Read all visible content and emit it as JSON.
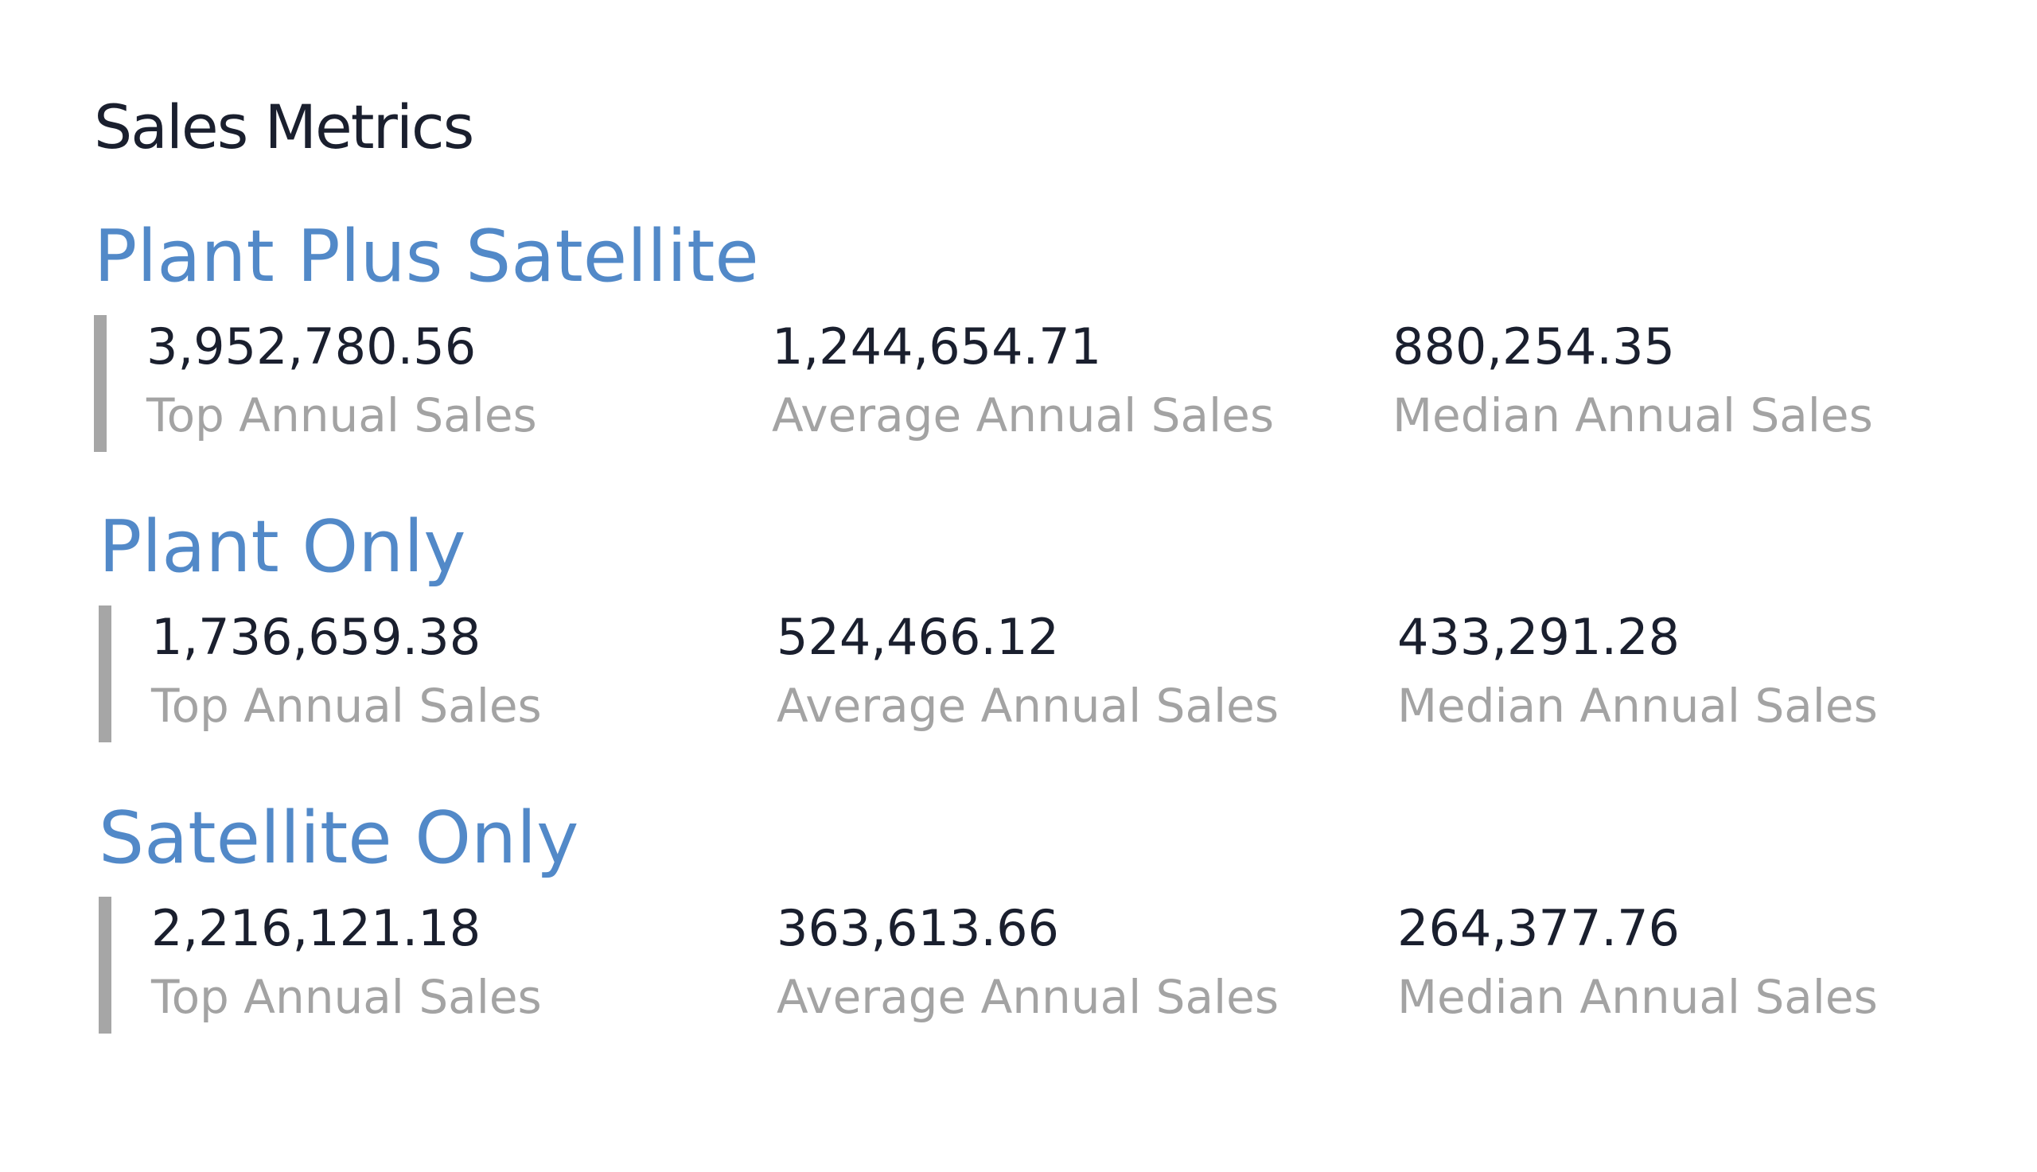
{
  "page": {
    "title": "Sales Metrics"
  },
  "sections": [
    {
      "title": "Plant Plus Satellite",
      "metrics": [
        {
          "value": "3,952,780.56",
          "label": "Top Annual Sales"
        },
        {
          "value": "1,244,654.71",
          "label": "Average Annual Sales"
        },
        {
          "value": "880,254.35",
          "label": "Median Annual Sales"
        }
      ]
    },
    {
      "title": "Plant Only",
      "metrics": [
        {
          "value": "1,736,659.38",
          "label": "Top Annual Sales"
        },
        {
          "value": "524,466.12",
          "label": "Average Annual Sales"
        },
        {
          "value": "433,291.28",
          "label": "Median Annual Sales"
        }
      ]
    },
    {
      "title": "Satellite Only",
      "metrics": [
        {
          "value": "2,216,121.18",
          "label": "Top Annual Sales"
        },
        {
          "value": "363,613.66",
          "label": "Average Annual Sales"
        },
        {
          "value": "264,377.76",
          "label": "Median Annual Sales"
        }
      ]
    }
  ],
  "colors": {
    "title_text": "#1a1f2e",
    "section_title": "#5289c8",
    "metric_value": "#1a1f2e",
    "metric_label": "#a3a3a3",
    "accent_bar": "#a6a6a6",
    "background": "#ffffff"
  }
}
